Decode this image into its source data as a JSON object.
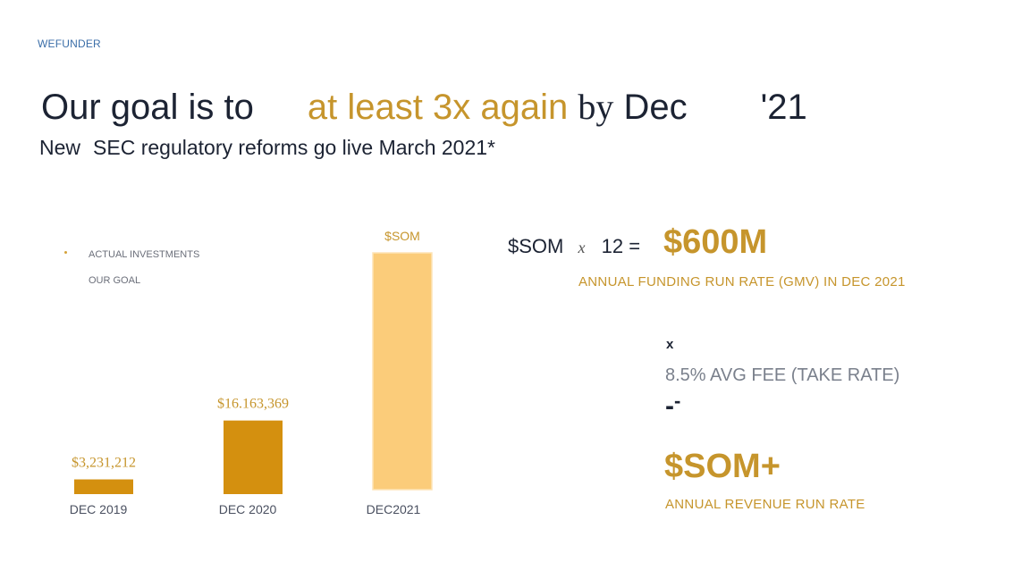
{
  "brand": "WEFUNDER",
  "headline": {
    "part1": "Our goal is to",
    "part2": "at least 3x again",
    "part3": "by",
    "part4": "Dec",
    "part5": "'21"
  },
  "subheadline": {
    "part1": "New",
    "part2": "SEC regulatory reforms go live March 2021*"
  },
  "legend": {
    "actual": "ACTUAL INVESTMENTS",
    "goal": "OUR GOAL"
  },
  "colors": {
    "actual": "#d4900f",
    "goal": "#fbcc7a",
    "accent": "#c6952c"
  },
  "chart_data": {
    "type": "bar",
    "categories": [
      "DEC 2019",
      "DEC 2020",
      "DEC2021"
    ],
    "values": [
      3231212,
      16163369,
      null
    ],
    "data_labels": [
      "$3,231,212",
      "$16.163,369",
      "$SOM"
    ],
    "title": "",
    "xlabel": "",
    "ylabel": "",
    "grid": false,
    "legend_placement": "top-left"
  },
  "equation": {
    "som": "$SOM",
    "times": "x",
    "twelve": "12 =",
    "result": "$600M",
    "result_caption": "ANNUAL FUNDING RUN RATE (GMV)  IN  DEC 2021"
  },
  "revenue": {
    "times": "x",
    "fee": "8.5% AVG FEE (TAKE RATE)",
    "dash": "-",
    "dash2": "-",
    "result": "$SOM+",
    "result_caption": "ANNUAL REVENUE RUN RATE"
  }
}
